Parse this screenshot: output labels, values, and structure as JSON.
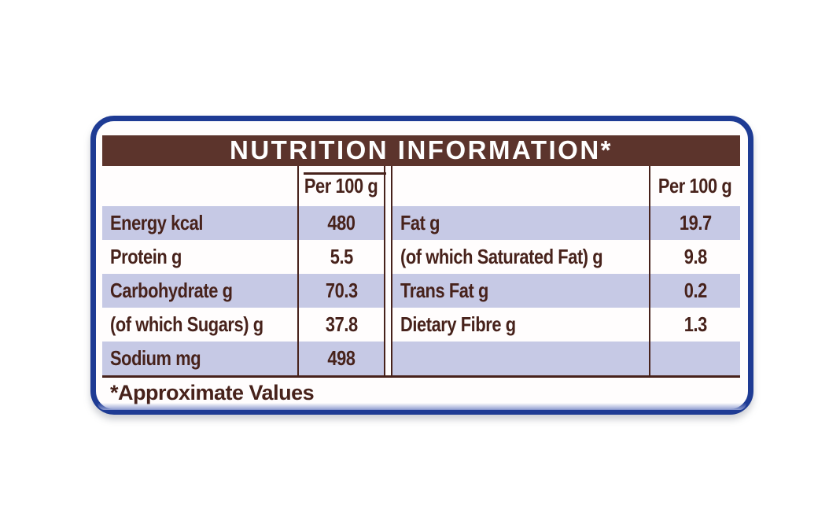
{
  "card": {
    "title": "NUTRITION INFORMATION*",
    "footnote": "*Approximate Values",
    "colors": {
      "border_blue": "#1e3b94",
      "border_blue_light": "#8d9bd0",
      "header_brown": "#5c342c",
      "text_maroon": "#47221b",
      "row_shade": "#c6c9e5",
      "card_background": "#fffdfd"
    },
    "left_table": {
      "value_header": "Per 100 g",
      "rows": [
        {
          "label": "Energy kcal",
          "value": "480"
        },
        {
          "label": "Protein g",
          "value": "5.5"
        },
        {
          "label": "Carbohydrate g",
          "value": "70.3"
        },
        {
          "label": "(of which Sugars) g",
          "value": "37.8"
        },
        {
          "label": "Sodium mg",
          "value": "498"
        }
      ]
    },
    "right_table": {
      "value_header": "Per 100 g",
      "rows": [
        {
          "label": "Fat g",
          "value": "19.7"
        },
        {
          "label": "(of which Saturated Fat) g",
          "value": "9.8"
        },
        {
          "label": "Trans Fat g",
          "value": "0.2"
        },
        {
          "label": "Dietary Fibre g",
          "value": "1.3"
        },
        {
          "label": "",
          "value": ""
        }
      ]
    }
  }
}
